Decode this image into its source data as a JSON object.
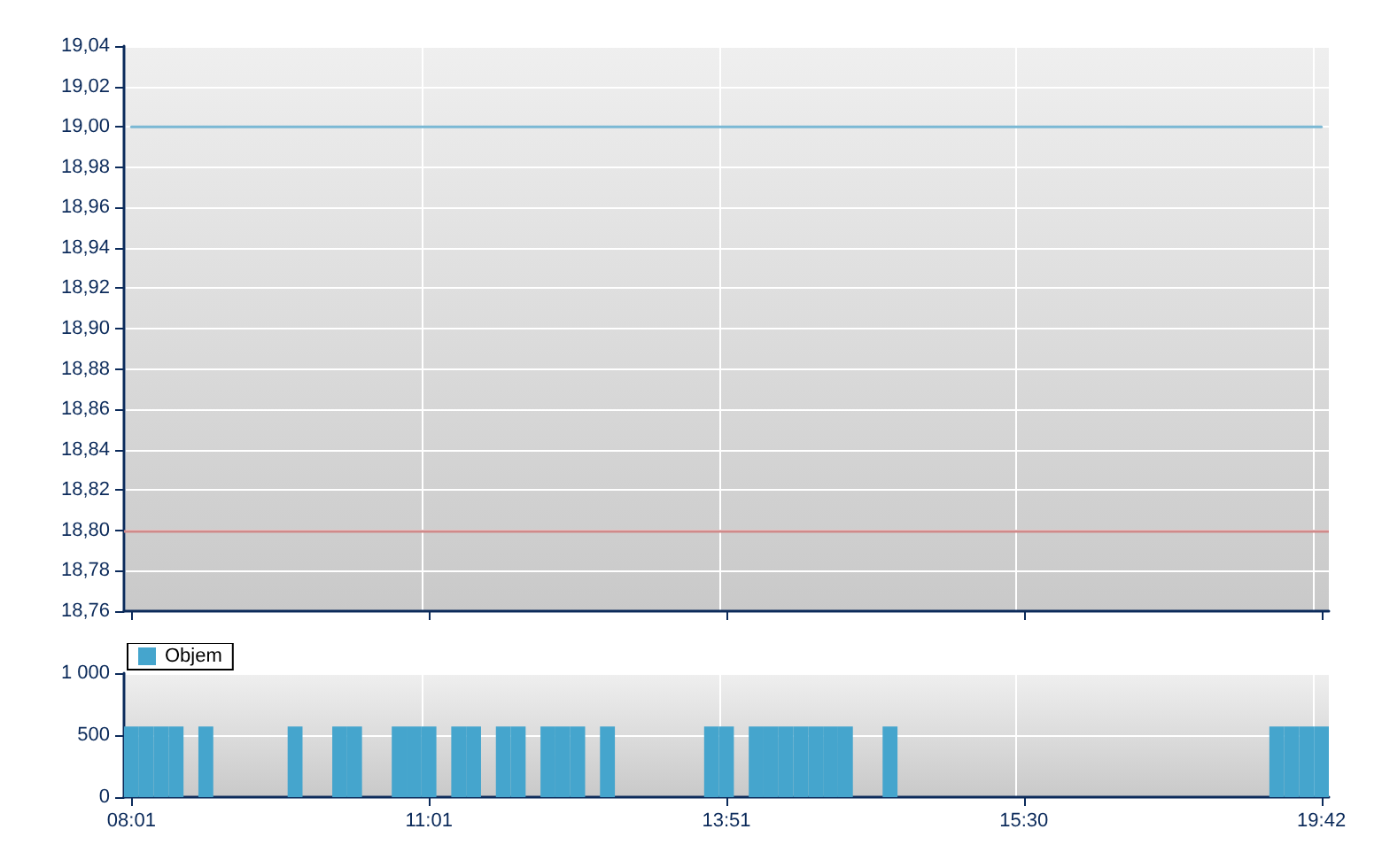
{
  "chart_data": [
    {
      "type": "line",
      "categories": [
        null,
        null,
        null,
        null,
        null,
        null,
        null,
        null,
        null,
        null,
        null,
        null,
        null,
        null,
        null,
        null,
        null,
        null,
        null,
        null,
        null,
        null,
        null,
        null,
        null,
        null,
        null,
        null,
        null,
        null,
        null,
        null,
        null,
        null,
        null,
        null,
        null,
        null,
        null,
        null,
        null,
        null,
        null,
        null,
        null,
        null,
        null,
        null,
        null,
        null,
        null,
        null,
        null,
        null,
        null,
        null,
        null,
        null,
        null,
        null,
        null,
        null,
        null,
        null,
        null,
        null,
        null,
        null,
        null,
        null,
        null,
        null,
        null,
        null,
        null,
        null,
        null,
        null,
        null,
        null,
        null
      ],
      "ylim": [
        18.76,
        19.04
      ],
      "yticks": [
        {
          "value": 18.76,
          "label": "18,76"
        },
        {
          "value": 18.78,
          "label": "18,78"
        },
        {
          "value": 18.8,
          "label": "18,80"
        },
        {
          "value": 18.82,
          "label": "18,82"
        },
        {
          "value": 18.84,
          "label": "18,84"
        },
        {
          "value": 18.86,
          "label": "18,86"
        },
        {
          "value": 18.88,
          "label": "18,88"
        },
        {
          "value": 18.9,
          "label": "18,90"
        },
        {
          "value": 18.92,
          "label": "18,92"
        },
        {
          "value": 18.94,
          "label": "18,94"
        },
        {
          "value": 18.96,
          "label": "18,96"
        },
        {
          "value": 18.98,
          "label": "18,98"
        },
        {
          "value": 19.0,
          "label": "19,00"
        },
        {
          "value": 19.02,
          "label": "19,02"
        },
        {
          "value": 19.04,
          "label": "19,04"
        }
      ],
      "series": [
        {
          "color": "#7ab8d4",
          "values": [
            19.0,
            19.0,
            19.0,
            19.0,
            19.0,
            19.0,
            19.0,
            19.0,
            19.0,
            19.0,
            19.0,
            19.0,
            19.0,
            19.0,
            19.0,
            19.0,
            19.0,
            19.0,
            19.0,
            19.0,
            19.0,
            19.0,
            19.0,
            19.0,
            19.0,
            19.0,
            19.0,
            19.0,
            19.0,
            19.0,
            19.0,
            19.0,
            19.0,
            19.0,
            19.0,
            19.0,
            19.0,
            19.0,
            19.0,
            19.0,
            19.0,
            19.0,
            19.0,
            19.0,
            19.0,
            19.0,
            19.0,
            19.0,
            19.0,
            19.0,
            19.0,
            19.0,
            19.0,
            19.0,
            19.0,
            19.0,
            19.0,
            19.0,
            19.0,
            19.0,
            19.0,
            19.0,
            19.0,
            19.0,
            19.0,
            19.0,
            19.0,
            19.0,
            19.0,
            19.0,
            19.0,
            19.0,
            19.0,
            19.0,
            19.0,
            19.0,
            19.0,
            19.0,
            19.0,
            19.0,
            19.0
          ]
        }
      ],
      "ref_lines": [
        {
          "axis": "y",
          "value": 18.8,
          "color": "#d08a8a"
        }
      ],
      "grid": true,
      "line_style": "solid",
      "tick_labels": "y"
    },
    {
      "type": "bar",
      "categories": [
        "08:01",
        null,
        null,
        null,
        null,
        null,
        null,
        null,
        null,
        null,
        null,
        null,
        null,
        null,
        null,
        null,
        null,
        null,
        null,
        null,
        "11:01",
        null,
        null,
        null,
        null,
        null,
        null,
        null,
        null,
        null,
        null,
        null,
        null,
        null,
        null,
        null,
        null,
        null,
        null,
        null,
        "13:51",
        null,
        null,
        null,
        null,
        null,
        null,
        null,
        null,
        null,
        null,
        null,
        null,
        null,
        null,
        null,
        null,
        null,
        null,
        null,
        "15:30",
        null,
        null,
        null,
        null,
        null,
        null,
        null,
        null,
        null,
        null,
        null,
        null,
        null,
        null,
        null,
        null,
        null,
        null,
        null,
        "19:42"
      ],
      "ylim": [
        0,
        1000
      ],
      "yticks": [
        0,
        500,
        {
          "value": 1000,
          "label": "1 000"
        }
      ],
      "series": [
        {
          "name": "Objem",
          "color": "#45a5cd",
          "values": [
            570,
            570,
            570,
            570,
            0,
            570,
            0,
            0,
            0,
            0,
            0,
            570,
            0,
            0,
            570,
            570,
            0,
            0,
            570,
            570,
            570,
            0,
            570,
            570,
            0,
            570,
            570,
            0,
            570,
            570,
            570,
            0,
            570,
            0,
            0,
            0,
            0,
            0,
            0,
            570,
            570,
            0,
            570,
            570,
            570,
            570,
            570,
            570,
            570,
            0,
            0,
            570,
            0,
            0,
            0,
            0,
            0,
            0,
            0,
            0,
            0,
            0,
            0,
            0,
            0,
            0,
            0,
            0,
            0,
            0,
            0,
            0,
            0,
            0,
            0,
            0,
            0,
            570,
            570,
            570,
            570
          ]
        }
      ],
      "grid": true,
      "legend": "top left"
    }
  ]
}
